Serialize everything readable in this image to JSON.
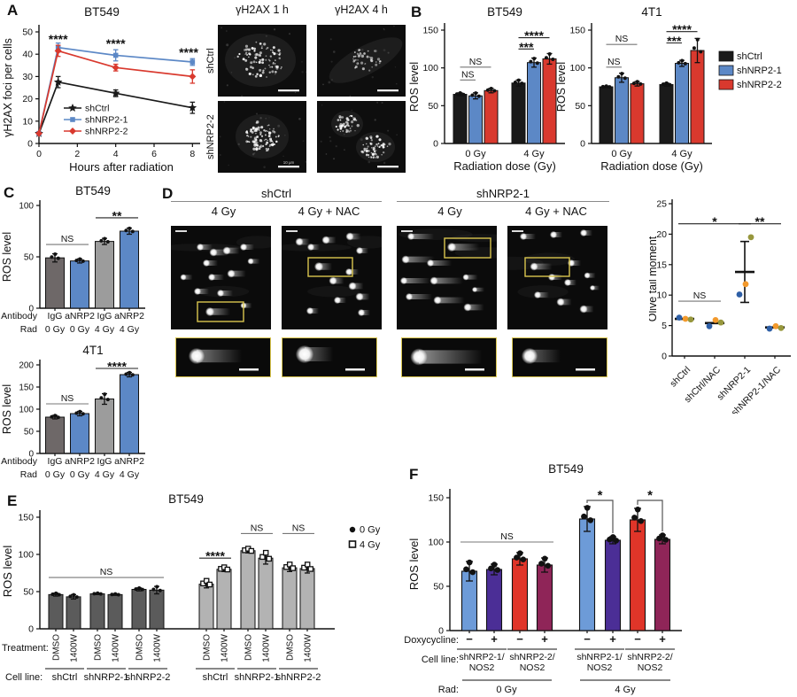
{
  "figure": {
    "background": "#ffffff"
  },
  "panels": {
    "A": {
      "letter": "A",
      "micrographs": {
        "col_titles": [
          "γH2AX 1 h",
          "γH2AX 4 h"
        ],
        "row_labels": [
          "shCtrl",
          "shNRP2-2"
        ],
        "scalebar_label": "10 μm"
      }
    },
    "B": {
      "letter": "B"
    },
    "C": {
      "letter": "C"
    },
    "D": {
      "letter": "D",
      "groups": [
        {
          "title": "shCtrl",
          "cols": [
            "4 Gy",
            "4 Gy + NAC"
          ]
        },
        {
          "title": "shNRP2-1",
          "cols": [
            "4 Gy",
            "4 Gy + NAC"
          ]
        }
      ]
    },
    "E": {
      "letter": "E"
    },
    "F": {
      "letter": "F"
    }
  },
  "chart_data": [
    {
      "panel": "A",
      "type": "line",
      "title": "BT549",
      "ylabel": "γH2AX foci per cells",
      "xlabel": "Hours after radiation",
      "ylim": [
        0,
        50
      ],
      "yticks": [
        0,
        10,
        20,
        30,
        40,
        50
      ],
      "xlim": [
        0,
        8.4
      ],
      "xticks": [
        0,
        2,
        4,
        6,
        8
      ],
      "x": [
        0,
        1,
        4,
        8
      ],
      "series": [
        {
          "name": "shCtrl",
          "color": "#1a1a1a",
          "marker": "star",
          "values": [
            4.5,
            27.5,
            22.5,
            16
          ],
          "errors": [
            0,
            2.5,
            1.5,
            2.5
          ]
        },
        {
          "name": "shNRP2-1",
          "color": "#5c88c6",
          "marker": "square",
          "values": [
            4.5,
            43,
            39.5,
            36.5
          ],
          "errors": [
            0,
            2,
            2.5,
            1.5
          ]
        },
        {
          "name": "shNRP2-2",
          "color": "#d9392e",
          "marker": "diamond",
          "values": [
            4.5,
            41.5,
            34,
            30
          ],
          "errors": [
            0,
            2.5,
            1.5,
            3
          ]
        }
      ],
      "annotations": [
        {
          "text": "****",
          "x": 1,
          "y": 46.5
        },
        {
          "text": "****",
          "x": 4,
          "y": 44.5
        },
        {
          "text": "****",
          "x": 8,
          "y": 40.5
        }
      ]
    },
    {
      "panel": "B",
      "type": "bar",
      "title": "BT549",
      "ylabel": "ROS level",
      "xlabel": "Radiation dose (Gy)",
      "ylim": [
        0,
        150
      ],
      "yticks": [
        0,
        50,
        100,
        150
      ],
      "groups": [
        "0 Gy",
        "4 Gy"
      ],
      "series": [
        {
          "name": "shCtrl",
          "color": "#1a1a1a",
          "values": [
            65,
            80
          ],
          "errors": [
            2,
            4
          ]
        },
        {
          "name": "shNRP2-1",
          "color": "#5c88c6",
          "values": [
            63,
            107
          ],
          "errors": [
            4,
            6
          ]
        },
        {
          "name": "shNRP2-2",
          "color": "#d9392e",
          "values": [
            70,
            112
          ],
          "errors": [
            3,
            7
          ]
        }
      ],
      "sig": [
        {
          "text": "NS",
          "group": 0,
          "from": 0,
          "to": 1,
          "y": 84
        },
        {
          "text": "NS",
          "group": 0,
          "from": 0,
          "to": 2,
          "y": 101
        },
        {
          "text": "***",
          "group": 1,
          "from": 0,
          "to": 1,
          "y": 125
        },
        {
          "text": "****",
          "group": 1,
          "from": 0,
          "to": 2,
          "y": 140
        }
      ]
    },
    {
      "panel": "B",
      "type": "bar",
      "title": "4T1",
      "ylabel": "ROS level",
      "xlabel": "Radiation dose (Gy)",
      "ylim": [
        0,
        150
      ],
      "yticks": [
        0,
        50,
        100,
        150
      ],
      "groups": [
        "0 Gy",
        "4 Gy"
      ],
      "series": [
        {
          "name": "shCtrl",
          "color": "#1a1a1a",
          "values": [
            75,
            78
          ],
          "errors": [
            1,
            2
          ]
        },
        {
          "name": "shNRP2-1",
          "color": "#5c88c6",
          "values": [
            87,
            106
          ],
          "errors": [
            6,
            4
          ]
        },
        {
          "name": "shNRP2-2",
          "color": "#d9392e",
          "values": [
            79,
            123
          ],
          "errors": [
            3,
            16
          ]
        }
      ],
      "sig": [
        {
          "text": "NS",
          "group": 0,
          "from": 0,
          "to": 1,
          "y": 101
        },
        {
          "text": "NS",
          "group": 0,
          "from": 0,
          "to": 2,
          "y": 131
        },
        {
          "text": "***",
          "group": 1,
          "from": 0,
          "to": 1,
          "y": 133
        },
        {
          "text": "****",
          "group": 1,
          "from": 0,
          "to": 2,
          "y": 148
        }
      ],
      "legend": [
        {
          "label": "shCtrl",
          "color": "#1a1a1a"
        },
        {
          "label": "shNRP2-1",
          "color": "#5c88c6"
        },
        {
          "label": "shNRP2-2",
          "color": "#d9392e"
        }
      ]
    },
    {
      "panel": "C",
      "type": "bar",
      "title": "BT549",
      "ylabel": "ROS level",
      "ylim": [
        0,
        100
      ],
      "yticks": [
        0,
        50,
        100
      ],
      "row_labels": [
        "Antibody",
        "Rad"
      ],
      "antibody": [
        "IgG",
        "aNRP2",
        "IgG",
        "aNRP2"
      ],
      "rad": [
        "0 Gy",
        "0 Gy",
        "4 Gy",
        "4 Gy"
      ],
      "values": [
        49,
        46,
        65,
        75
      ],
      "errors": [
        4,
        2,
        3,
        3
      ],
      "colors": [
        "#6e6868",
        "#5c88c6",
        "#9c9c9c",
        "#5c88c6"
      ],
      "sig": [
        {
          "text": "NS",
          "from": 0,
          "to": 1,
          "y": 62
        },
        {
          "text": "**",
          "from": 2,
          "to": 3,
          "y": 88
        }
      ]
    },
    {
      "panel": "C",
      "type": "bar",
      "title": "4T1",
      "ylabel": "ROS level",
      "ylim": [
        0,
        200
      ],
      "yticks": [
        0,
        50,
        100,
        150,
        200
      ],
      "row_labels": [
        "Antibody",
        "Rad"
      ],
      "antibody": [
        "IgG",
        "aNRP2",
        "IgG",
        "aNRP2"
      ],
      "rad": [
        "0 Gy",
        "0 Gy",
        "4 Gy",
        "4 Gy"
      ],
      "values": [
        82,
        90,
        123,
        178
      ],
      "errors": [
        4,
        5,
        12,
        5
      ],
      "colors": [
        "#6e6868",
        "#5c88c6",
        "#9c9c9c",
        "#5c88c6"
      ],
      "sig": [
        {
          "text": "NS",
          "from": 0,
          "to": 1,
          "y": 112
        },
        {
          "text": "****",
          "from": 2,
          "to": 3,
          "y": 192
        }
      ]
    },
    {
      "panel": "D",
      "type": "scatter",
      "ylabel": "Olive tail moment",
      "ylim": [
        0,
        25
      ],
      "yticks": [
        0,
        5,
        10,
        15,
        20,
        25
      ],
      "categories": [
        "shCtrl",
        "shCtrl/NAC",
        "shNRP2-1",
        "shNRP2-1/NAC"
      ],
      "point_colors": [
        "#2e5fa6",
        "#f2992c",
        "#97973d"
      ],
      "points": [
        [
          6.3,
          6.1,
          6.0
        ],
        [
          4.9,
          5.9,
          5.5
        ],
        [
          10.1,
          11.8,
          19.5
        ],
        [
          4.5,
          4.9,
          4.6
        ]
      ],
      "means": [
        6.1,
        5.4,
        13.8,
        4.7
      ],
      "whiskers": [
        null,
        null,
        [
          8.8,
          18.8
        ],
        null
      ],
      "sig": [
        {
          "text": "NS",
          "from": 0,
          "to": 1,
          "y": 9
        },
        {
          "text": "*",
          "from": 0,
          "to": 2,
          "y": 21.7
        },
        {
          "text": "**",
          "from": 2,
          "to": 3,
          "y": 21.7
        }
      ]
    },
    {
      "panel": "E",
      "type": "bar",
      "title": "BT549",
      "ylabel": "ROS level",
      "ylim": [
        0,
        150
      ],
      "yticks": [
        0,
        50,
        100,
        150
      ],
      "row_labels": [
        "Treatment:",
        "Cell line:"
      ],
      "treatments": [
        "DMSO",
        "1400W",
        "DMSO",
        "1400W",
        "DMSO",
        "1400W",
        "DMSO",
        "1400W",
        "DMSO",
        "1400W",
        "DMSO",
        "1400W"
      ],
      "cell_lines": [
        "shCtrl",
        "shNRP2-1",
        "shNRP2-2",
        "shCtrl",
        "shNRP2-1",
        "shNRP2-2"
      ],
      "values": [
        46,
        43,
        47,
        46,
        53,
        52,
        60,
        80,
        105,
        95,
        82,
        81
      ],
      "errors": [
        2,
        3,
        1,
        1,
        2,
        5,
        5,
        3,
        3,
        8,
        5,
        6
      ],
      "bar_colors": {
        "0 Gy": "#5b5b5b",
        "4 Gy": "#b3b3b3"
      },
      "legend": [
        {
          "marker": "circle",
          "label": "0 Gy"
        },
        {
          "marker": "square",
          "label": "4 Gy"
        }
      ],
      "sig": [
        {
          "text": "NS",
          "from": 0,
          "to": 5,
          "y": 69
        },
        {
          "text": "****",
          "from": 6,
          "to": 7,
          "y": 95
        },
        {
          "text": "NS",
          "from": 8,
          "to": 9,
          "y": 128
        },
        {
          "text": "NS",
          "from": 10,
          "to": 11,
          "y": 128
        }
      ]
    },
    {
      "panel": "F",
      "type": "bar",
      "title": "BT549",
      "ylabel": "ROS level",
      "ylim": [
        0,
        150
      ],
      "yticks": [
        0,
        50,
        100,
        150
      ],
      "row_labels": [
        "Doxycycline:",
        "Cell line:",
        "Rad:"
      ],
      "doxycycline": [
        "−",
        "+",
        "−",
        "+",
        "−",
        "+",
        "−",
        "+"
      ],
      "cell_lines": [
        "shNRP2-1/",
        "NOS2",
        "shNRP2-2/",
        "NOS2",
        "shNRP2-1/",
        "NOS2",
        "shNRP2-2/",
        "NOS2"
      ],
      "rad": [
        "0 Gy",
        "4 Gy"
      ],
      "values": [
        67,
        69,
        81,
        74,
        126,
        102,
        125,
        103
      ],
      "errors": [
        11,
        6,
        7,
        8,
        14,
        4,
        13,
        5
      ],
      "colors": [
        "#6d9bd8",
        "#4b2e96",
        "#e03529",
        "#8f2558",
        "#6d9bd8",
        "#4b2e96",
        "#e03529",
        "#8f2558"
      ],
      "sig": [
        {
          "text": "NS",
          "type": "line",
          "from": 0,
          "to": 3,
          "y": 100
        },
        {
          "text": "*",
          "type": "bracket",
          "from": 4,
          "to": 5,
          "y": 147
        },
        {
          "text": "*",
          "type": "bracket",
          "from": 6,
          "to": 7,
          "y": 147
        }
      ]
    }
  ]
}
